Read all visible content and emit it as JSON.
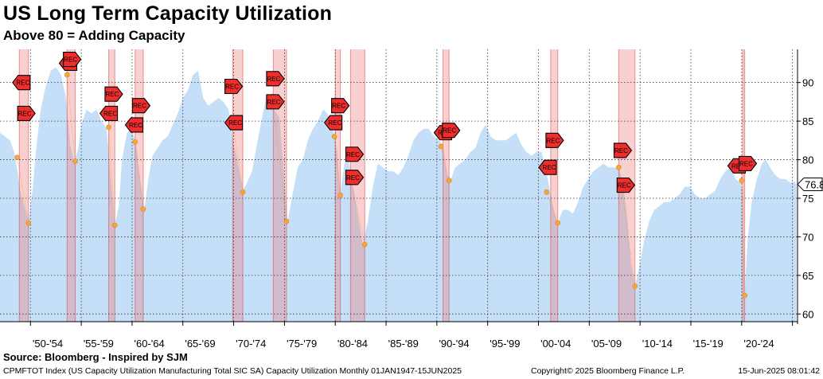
{
  "title": "US Long Term Capacity Utilization",
  "subtitle": "Above 80 = Adding Capacity",
  "source": "Source: Bloomberg - Inspired by SJM",
  "footer": {
    "description": "CPMFTOT Index (US Capacity Utilization Manufacturing Total SIC SA) Capacity Utilization  Monthly 01JAN1947-15JUN2025",
    "copyright": "Copyright© 2025 Bloomberg Finance L.P.",
    "timestamp": "15-Jun-2025 08:01:42"
  },
  "chart_data": {
    "type": "area",
    "title": "US Long Term Capacity Utilization",
    "subtitle": "Above 80 = Adding Capacity",
    "xlim": [
      1947.0,
      2025.5
    ],
    "ylim": [
      59,
      94.3
    ],
    "y_ticks": [
      60,
      65,
      70,
      75,
      80,
      85,
      90
    ],
    "x_tick_labels": [
      {
        "label": "'50-'54",
        "x": 1951.7
      },
      {
        "label": "'55-'59",
        "x": 1956.7
      },
      {
        "label": "'60-'64",
        "x": 1961.7
      },
      {
        "label": "'65-'69",
        "x": 1966.7
      },
      {
        "label": "'70-'74",
        "x": 1971.7
      },
      {
        "label": "'75-'79",
        "x": 1976.7
      },
      {
        "label": "'80-'84",
        "x": 1981.7
      },
      {
        "label": "'85-'89",
        "x": 1986.7
      },
      {
        "label": "'90-'94",
        "x": 1991.7
      },
      {
        "label": "'95-'99",
        "x": 1996.7
      },
      {
        "label": "'00-'04",
        "x": 2001.7
      },
      {
        "label": "'05-'09",
        "x": 2006.7
      },
      {
        "label": "'10-'14",
        "x": 2011.7
      },
      {
        "label": "'15-'19",
        "x": 2016.7
      },
      {
        "label": "'20-'24",
        "x": 2021.7
      }
    ],
    "last_value_label": "76.8",
    "series": [
      {
        "name": "CPMFTOT Index",
        "color": "#c5dff8",
        "points": [
          [
            1947.0,
            83.5
          ],
          [
            1947.5,
            83.0
          ],
          [
            1948.0,
            82.5
          ],
          [
            1948.5,
            80.5
          ],
          [
            1949.0,
            76.0
          ],
          [
            1949.4,
            74.0
          ],
          [
            1949.8,
            72.0
          ],
          [
            1950.2,
            76.0
          ],
          [
            1950.6,
            82.0
          ],
          [
            1951.0,
            86.5
          ],
          [
            1951.5,
            89.5
          ],
          [
            1952.0,
            91.5
          ],
          [
            1952.5,
            92.0
          ],
          [
            1953.0,
            91.0
          ],
          [
            1953.5,
            88.0
          ],
          [
            1953.9,
            82.0
          ],
          [
            1954.3,
            79.8
          ],
          [
            1954.7,
            81.5
          ],
          [
            1955.0,
            84.5
          ],
          [
            1955.5,
            86.5
          ],
          [
            1956.0,
            86.0
          ],
          [
            1956.5,
            86.5
          ],
          [
            1957.0,
            85.0
          ],
          [
            1957.5,
            84.0
          ],
          [
            1958.0,
            76.0
          ],
          [
            1958.3,
            71.5
          ],
          [
            1958.7,
            74.0
          ],
          [
            1959.0,
            80.0
          ],
          [
            1959.5,
            83.5
          ],
          [
            1960.0,
            84.0
          ],
          [
            1960.4,
            82.0
          ],
          [
            1960.8,
            77.5
          ],
          [
            1961.2,
            73.5
          ],
          [
            1961.6,
            77.5
          ],
          [
            1962.0,
            80.5
          ],
          [
            1962.5,
            81.5
          ],
          [
            1963.0,
            82.5
          ],
          [
            1963.5,
            83.0
          ],
          [
            1964.0,
            84.5
          ],
          [
            1964.5,
            86.0
          ],
          [
            1965.0,
            88.0
          ],
          [
            1965.5,
            89.0
          ],
          [
            1966.0,
            91.0
          ],
          [
            1966.5,
            91.5
          ],
          [
            1967.0,
            88.0
          ],
          [
            1967.5,
            87.0
          ],
          [
            1968.0,
            87.5
          ],
          [
            1968.5,
            88.0
          ],
          [
            1969.0,
            87.5
          ],
          [
            1969.5,
            86.5
          ],
          [
            1970.0,
            82.0
          ],
          [
            1970.5,
            79.0
          ],
          [
            1970.9,
            76.0
          ],
          [
            1971.3,
            77.0
          ],
          [
            1971.8,
            78.5
          ],
          [
            1972.3,
            82.0
          ],
          [
            1972.8,
            85.5
          ],
          [
            1973.2,
            88.0
          ],
          [
            1973.6,
            88.5
          ],
          [
            1974.0,
            86.5
          ],
          [
            1974.5,
            85.5
          ],
          [
            1974.9,
            79.0
          ],
          [
            1975.3,
            72.0
          ],
          [
            1975.8,
            75.5
          ],
          [
            1976.3,
            79.0
          ],
          [
            1976.8,
            80.0
          ],
          [
            1977.3,
            82.5
          ],
          [
            1977.8,
            84.0
          ],
          [
            1978.3,
            85.0
          ],
          [
            1978.8,
            86.5
          ],
          [
            1979.2,
            86.0
          ],
          [
            1979.7,
            84.5
          ],
          [
            1980.2,
            81.0
          ],
          [
            1980.5,
            75.5
          ],
          [
            1980.9,
            79.5
          ],
          [
            1981.3,
            80.0
          ],
          [
            1981.7,
            77.0
          ],
          [
            1982.2,
            73.0
          ],
          [
            1982.7,
            69.0
          ],
          [
            1983.2,
            72.0
          ],
          [
            1983.7,
            76.5
          ],
          [
            1984.2,
            79.5
          ],
          [
            1984.7,
            79.0
          ],
          [
            1985.2,
            78.5
          ],
          [
            1985.7,
            78.5
          ],
          [
            1986.2,
            78.0
          ],
          [
            1986.7,
            79.0
          ],
          [
            1987.2,
            80.5
          ],
          [
            1987.7,
            82.5
          ],
          [
            1988.2,
            83.5
          ],
          [
            1988.7,
            84.0
          ],
          [
            1989.2,
            84.0
          ],
          [
            1989.7,
            83.0
          ],
          [
            1990.2,
            82.5
          ],
          [
            1990.6,
            82.0
          ],
          [
            1991.0,
            78.0
          ],
          [
            1991.4,
            77.5
          ],
          [
            1991.8,
            79.0
          ],
          [
            1992.3,
            79.5
          ],
          [
            1992.8,
            80.0
          ],
          [
            1993.3,
            81.0
          ],
          [
            1993.8,
            81.5
          ],
          [
            1994.3,
            83.5
          ],
          [
            1994.8,
            84.5
          ],
          [
            1995.3,
            83.0
          ],
          [
            1995.8,
            82.5
          ],
          [
            1996.3,
            82.5
          ],
          [
            1996.8,
            82.5
          ],
          [
            1997.3,
            83.0
          ],
          [
            1997.8,
            83.5
          ],
          [
            1998.3,
            82.0
          ],
          [
            1998.8,
            81.0
          ],
          [
            1999.3,
            80.5
          ],
          [
            1999.8,
            81.0
          ],
          [
            2000.3,
            81.0
          ],
          [
            2000.7,
            79.0
          ],
          [
            2001.2,
            75.5
          ],
          [
            2001.6,
            73.0
          ],
          [
            2001.9,
            71.8
          ],
          [
            2002.4,
            73.5
          ],
          [
            2002.9,
            73.5
          ],
          [
            2003.4,
            73.0
          ],
          [
            2003.9,
            74.5
          ],
          [
            2004.4,
            76.5
          ],
          [
            2004.9,
            77.5
          ],
          [
            2005.4,
            78.5
          ],
          [
            2005.9,
            79.0
          ],
          [
            2006.4,
            79.5
          ],
          [
            2006.9,
            79.0
          ],
          [
            2007.4,
            79.0
          ],
          [
            2007.9,
            79.0
          ],
          [
            2008.3,
            77.0
          ],
          [
            2008.7,
            73.0
          ],
          [
            2009.1,
            66.5
          ],
          [
            2009.5,
            63.5
          ],
          [
            2009.9,
            66.0
          ],
          [
            2010.4,
            69.5
          ],
          [
            2010.9,
            72.0
          ],
          [
            2011.4,
            73.5
          ],
          [
            2011.9,
            74.0
          ],
          [
            2012.4,
            74.5
          ],
          [
            2012.9,
            74.5
          ],
          [
            2013.4,
            75.0
          ],
          [
            2013.9,
            75.5
          ],
          [
            2014.4,
            76.5
          ],
          [
            2014.9,
            76.5
          ],
          [
            2015.4,
            75.5
          ],
          [
            2015.9,
            75.0
          ],
          [
            2016.4,
            75.0
          ],
          [
            2016.9,
            75.5
          ],
          [
            2017.4,
            76.0
          ],
          [
            2017.9,
            77.5
          ],
          [
            2018.4,
            78.5
          ],
          [
            2018.9,
            79.0
          ],
          [
            2019.4,
            77.5
          ],
          [
            2019.9,
            77.0
          ],
          [
            2020.1,
            76.0
          ],
          [
            2020.3,
            62.5
          ],
          [
            2020.6,
            70.0
          ],
          [
            2021.0,
            74.5
          ],
          [
            2021.5,
            77.5
          ],
          [
            2022.0,
            79.5
          ],
          [
            2022.4,
            80.0
          ],
          [
            2022.8,
            79.0
          ],
          [
            2023.3,
            78.0
          ],
          [
            2023.8,
            77.5
          ],
          [
            2024.3,
            77.5
          ],
          [
            2024.8,
            77.0
          ],
          [
            2025.2,
            77.2
          ],
          [
            2025.4,
            76.8
          ]
        ]
      }
    ],
    "recessions": [
      [
        1948.9,
        1949.8
      ],
      [
        1953.6,
        1954.4
      ],
      [
        1957.7,
        1958.3
      ],
      [
        1960.3,
        1961.1
      ],
      [
        1969.9,
        1970.9
      ],
      [
        1973.9,
        1975.2
      ],
      [
        1980.0,
        1980.5
      ],
      [
        1981.5,
        1982.9
      ],
      [
        1990.6,
        1991.2
      ],
      [
        2001.2,
        2001.9
      ],
      [
        2007.9,
        2009.5
      ],
      [
        2020.1,
        2020.3
      ]
    ],
    "rec_label": "REC",
    "rec_markers": [
      {
        "x": 1949.1,
        "y": 90.0,
        "dir": "left"
      },
      {
        "x": 1949.6,
        "y": 86.0,
        "dir": "right"
      },
      {
        "x": 1953.7,
        "y": 92.5,
        "dir": "left"
      },
      {
        "x": 1954.1,
        "y": 93.0,
        "dir": "right"
      },
      {
        "x": 1957.7,
        "y": 86.0,
        "dir": "left"
      },
      {
        "x": 1958.2,
        "y": 88.5,
        "dir": "right"
      },
      {
        "x": 1960.2,
        "y": 84.5,
        "dir": "left"
      },
      {
        "x": 1960.9,
        "y": 87.0,
        "dir": "right"
      },
      {
        "x": 1970.0,
        "y": 89.5,
        "dir": "right"
      },
      {
        "x": 1970.0,
        "y": 84.8,
        "dir": "left"
      },
      {
        "x": 1974.1,
        "y": 90.5,
        "dir": "right"
      },
      {
        "x": 1974.1,
        "y": 87.5,
        "dir": "right"
      },
      {
        "x": 1979.8,
        "y": 84.8,
        "dir": "left"
      },
      {
        "x": 1980.5,
        "y": 87.0,
        "dir": "right"
      },
      {
        "x": 1981.9,
        "y": 80.7,
        "dir": "right"
      },
      {
        "x": 1981.9,
        "y": 77.7,
        "dir": "right"
      },
      {
        "x": 1990.6,
        "y": 83.5,
        "dir": "left"
      },
      {
        "x": 1991.4,
        "y": 83.8,
        "dir": "right"
      },
      {
        "x": 2000.9,
        "y": 79.0,
        "dir": "left"
      },
      {
        "x": 2001.6,
        "y": 82.5,
        "dir": "right"
      },
      {
        "x": 2008.3,
        "y": 81.2,
        "dir": "right"
      },
      {
        "x": 2008.6,
        "y": 76.7,
        "dir": "right"
      },
      {
        "x": 2019.5,
        "y": 79.2,
        "dir": "left"
      },
      {
        "x": 2020.6,
        "y": 79.5,
        "dir": "right"
      }
    ],
    "trough_points": [
      [
        1948.7,
        80.3
      ],
      [
        1949.8,
        71.8
      ],
      [
        1953.6,
        91.0
      ],
      [
        1954.4,
        79.8
      ],
      [
        1957.7,
        84.2
      ],
      [
        1958.3,
        71.5
      ],
      [
        1960.3,
        82.3
      ],
      [
        1961.1,
        73.6
      ],
      [
        1969.9,
        85.0
      ],
      [
        1970.9,
        75.8
      ],
      [
        1973.8,
        88.2
      ],
      [
        1975.2,
        72.0
      ],
      [
        1979.9,
        83.0
      ],
      [
        1980.5,
        75.4
      ],
      [
        1981.5,
        77.6
      ],
      [
        1982.9,
        69.0
      ],
      [
        1990.4,
        81.7
      ],
      [
        1991.2,
        77.3
      ],
      [
        2000.8,
        75.8
      ],
      [
        2001.9,
        71.8
      ],
      [
        2007.9,
        79.0
      ],
      [
        2009.5,
        63.6
      ],
      [
        2020.0,
        77.3
      ],
      [
        2020.3,
        62.4
      ]
    ]
  }
}
